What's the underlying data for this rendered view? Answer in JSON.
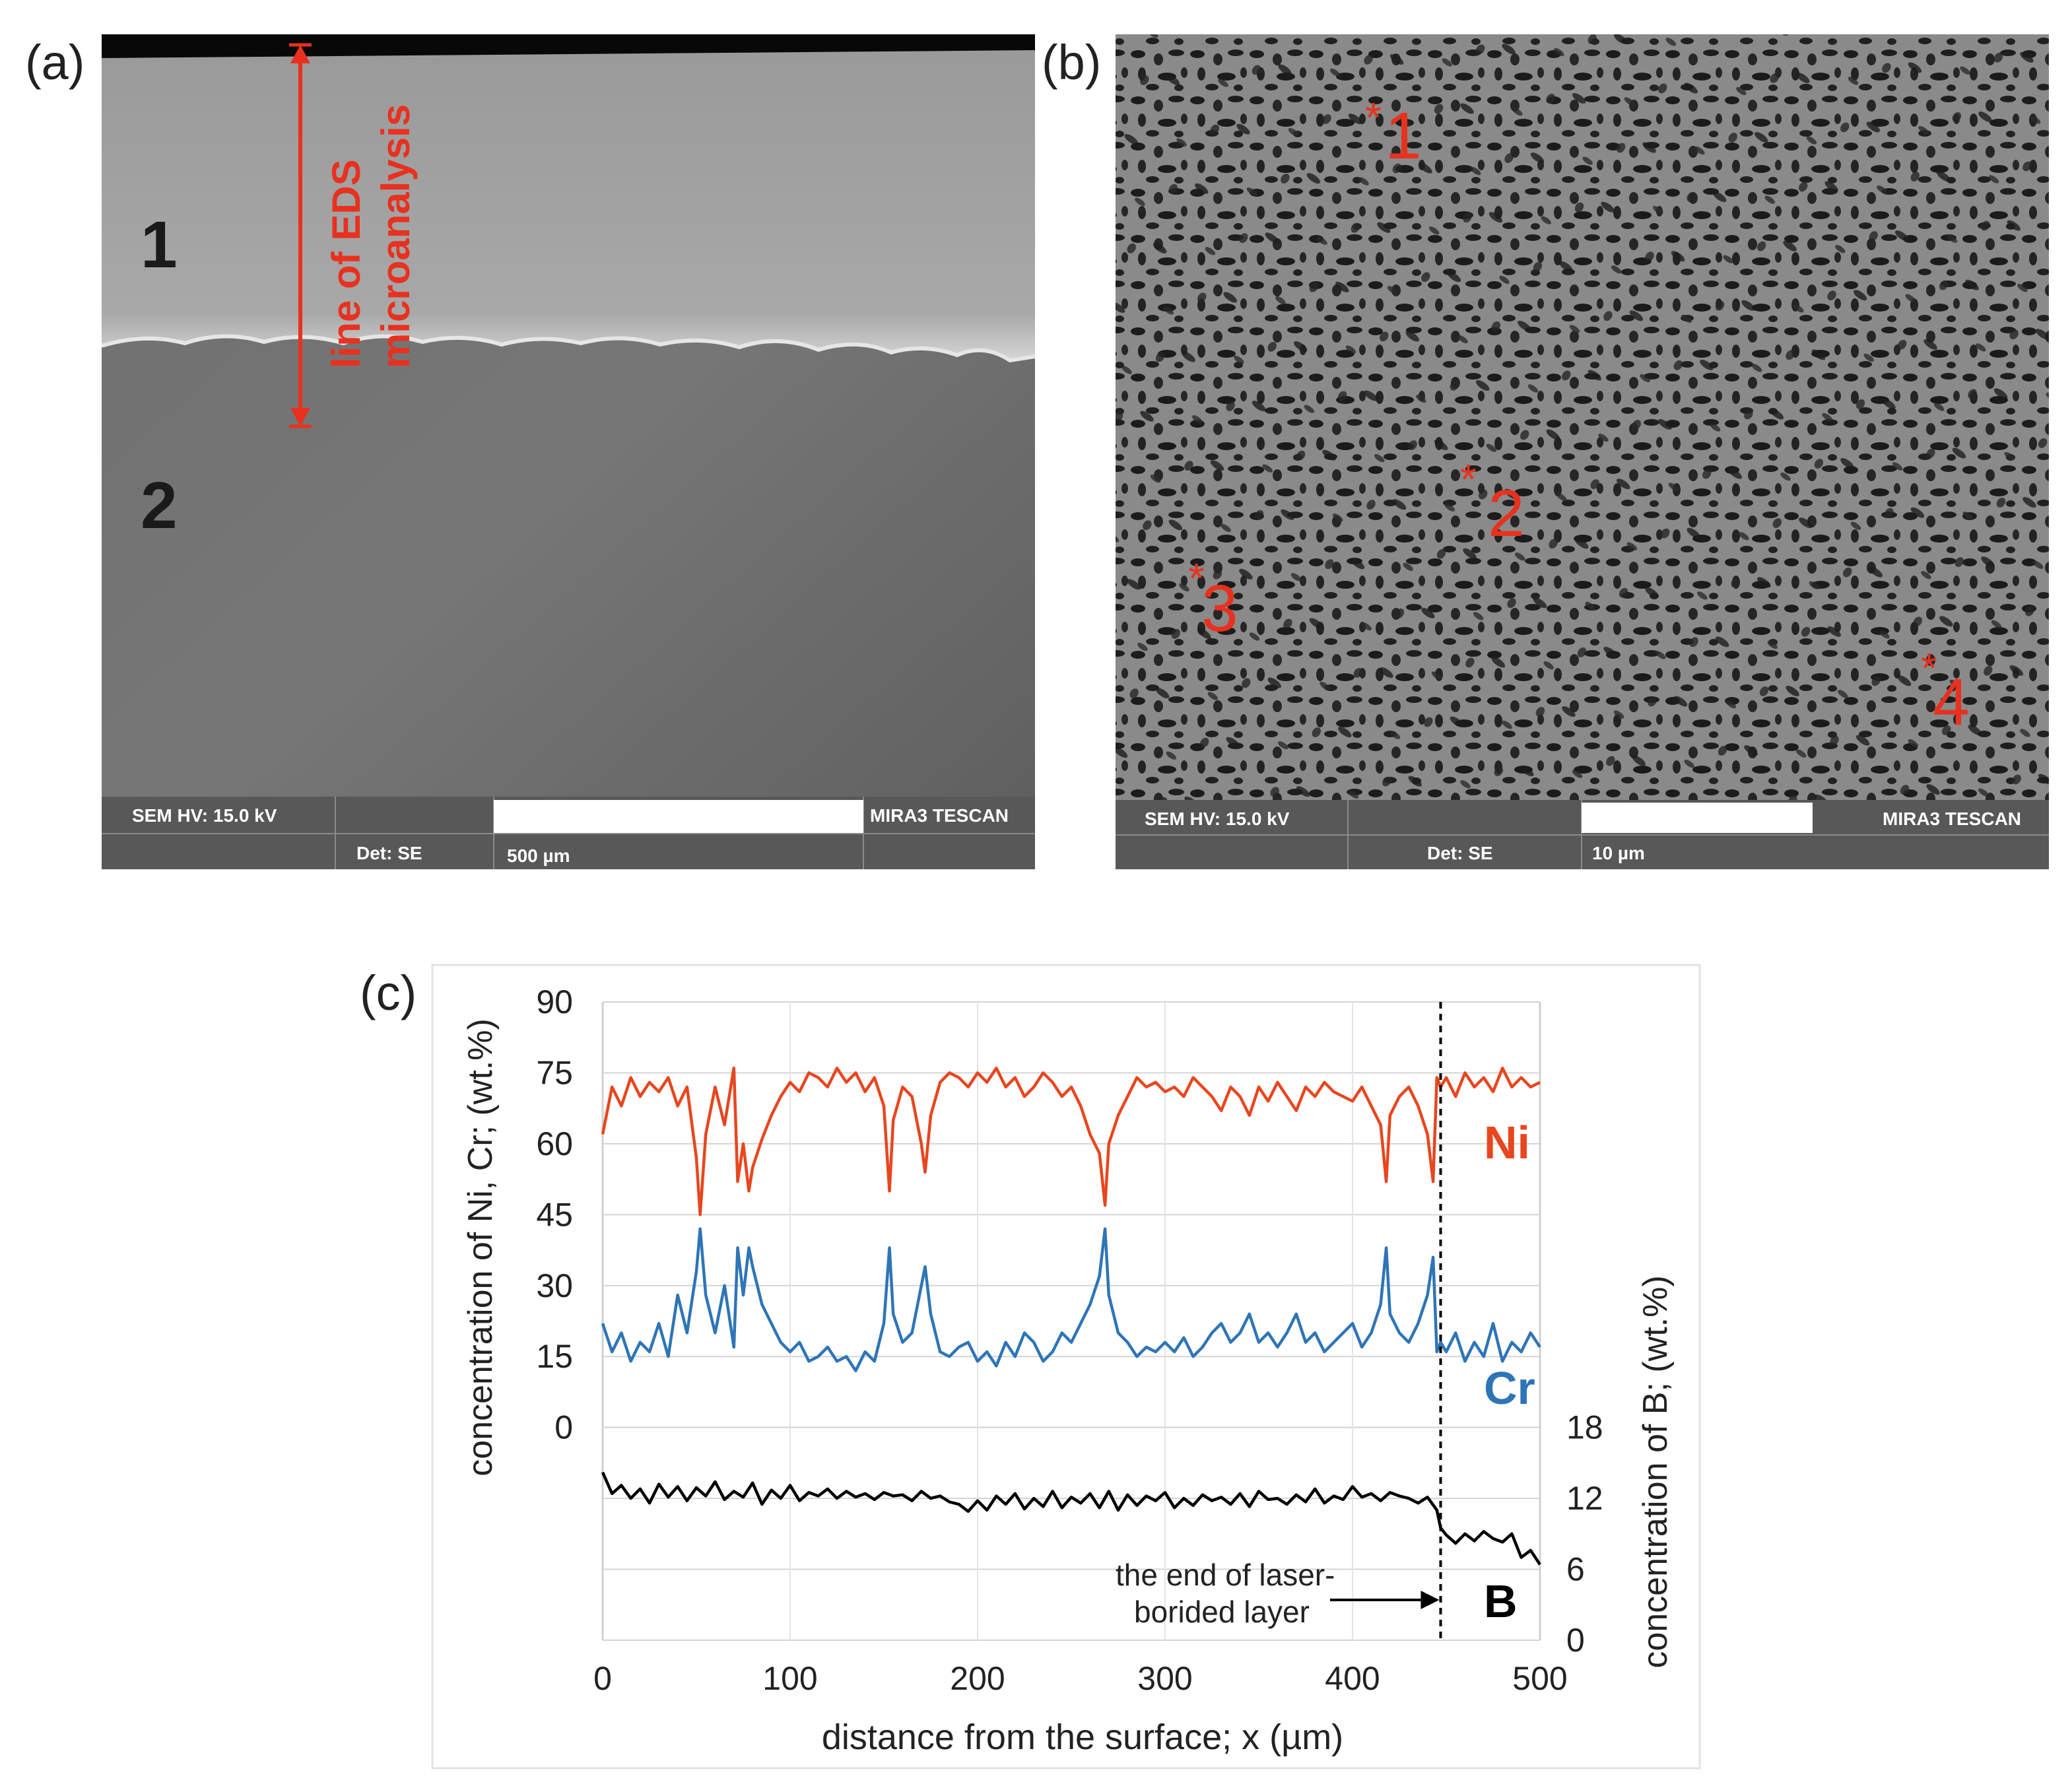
{
  "colors": {
    "ni": "#e8461e",
    "cr": "#2e75b6",
    "b": "#000000",
    "annotation_red": "#e8311e",
    "sem_bar": "#585858"
  },
  "panel_a": {
    "label": "(a)",
    "region1": "1",
    "region2": "2",
    "eds_line_label_1": "line of EDS",
    "eds_line_label_2": "microanalysis",
    "info_hv": "SEM HV: 15.0 kV",
    "info_det": "Det: SE",
    "info_scale": "500 µm",
    "info_brand": "MIRA3 TESCAN"
  },
  "panel_b": {
    "label": "(b)",
    "points": [
      {
        "star": "*",
        "num": "1"
      },
      {
        "star": "*",
        "num": "2"
      },
      {
        "star": "*",
        "num": "3"
      },
      {
        "star": "*",
        "num": "4"
      }
    ],
    "info_hv": "SEM HV: 15.0 kV",
    "info_det": "Det: SE",
    "info_scale": "10 µm",
    "info_brand": "MIRA3 TESCAN"
  },
  "chart_data": {
    "label": "(c)",
    "type": "line",
    "xlabel": "distance from the surface; x (µm)",
    "ylabel_left": "concentration of Ni, Cr; (wt.%)",
    "ylabel_right": "concentration of B; (wt.%)",
    "xlim": [
      0,
      500
    ],
    "ylim_left": [
      -45,
      90
    ],
    "ylim_right": [
      0,
      18
    ],
    "x_ticks": [
      "0",
      "100",
      "200",
      "300",
      "400",
      "500"
    ],
    "y_ticks_left": [
      "0",
      "15",
      "30",
      "45",
      "60",
      "75",
      "90"
    ],
    "y_ticks_right": [
      "0",
      "6",
      "12",
      "18"
    ],
    "grid": "horizontal",
    "layer_end_x": 447,
    "annotation_1": "the end of laser-",
    "annotation_2": "borided layer",
    "series": [
      {
        "name": "Ni",
        "axis": "left",
        "color": "#e8461e",
        "x": [
          0,
          5,
          10,
          15,
          20,
          25,
          30,
          35,
          40,
          45,
          50,
          52,
          55,
          60,
          65,
          70,
          72,
          75,
          78,
          80,
          85,
          90,
          95,
          100,
          105,
          110,
          115,
          120,
          125,
          130,
          135,
          140,
          145,
          150,
          153,
          155,
          160,
          165,
          170,
          172,
          175,
          180,
          185,
          190,
          195,
          200,
          205,
          210,
          215,
          220,
          225,
          230,
          235,
          240,
          245,
          250,
          255,
          260,
          265,
          268,
          270,
          275,
          280,
          285,
          290,
          295,
          300,
          305,
          310,
          315,
          320,
          325,
          330,
          335,
          340,
          345,
          350,
          355,
          360,
          365,
          370,
          375,
          380,
          385,
          390,
          395,
          400,
          405,
          410,
          415,
          418,
          420,
          425,
          430,
          435,
          440,
          443,
          445,
          447,
          450,
          455,
          460,
          465,
          470,
          475,
          480,
          485,
          490,
          495,
          500
        ],
        "y": [
          62,
          72,
          68,
          74,
          70,
          73,
          71,
          74,
          68,
          72,
          57,
          45,
          62,
          72,
          64,
          76,
          52,
          60,
          50,
          55,
          61,
          66,
          70,
          73,
          71,
          75,
          74,
          72,
          76,
          73,
          75,
          71,
          74,
          68,
          50,
          65,
          72,
          70,
          60,
          54,
          66,
          73,
          75,
          74,
          72,
          75,
          73,
          76,
          72,
          74,
          70,
          72,
          75,
          73,
          70,
          72,
          68,
          62,
          58,
          47,
          60,
          66,
          70,
          74,
          72,
          73,
          71,
          72,
          70,
          74,
          72,
          70,
          67,
          72,
          70,
          66,
          72,
          69,
          73,
          70,
          67,
          72,
          70,
          73,
          71,
          70,
          69,
          72,
          68,
          64,
          52,
          66,
          70,
          72,
          68,
          62,
          52,
          74,
          72,
          74,
          70,
          75,
          72,
          74,
          71,
          76,
          72,
          74,
          72,
          73
        ]
      },
      {
        "name": "Cr",
        "axis": "left",
        "color": "#2e75b6",
        "x": [
          0,
          5,
          10,
          15,
          20,
          25,
          30,
          35,
          40,
          45,
          50,
          52,
          55,
          60,
          65,
          70,
          72,
          75,
          78,
          80,
          85,
          90,
          95,
          100,
          105,
          110,
          115,
          120,
          125,
          130,
          135,
          140,
          145,
          150,
          153,
          155,
          160,
          165,
          170,
          172,
          175,
          180,
          185,
          190,
          195,
          200,
          205,
          210,
          215,
          220,
          225,
          230,
          235,
          240,
          245,
          250,
          255,
          260,
          265,
          268,
          270,
          275,
          280,
          285,
          290,
          295,
          300,
          305,
          310,
          315,
          320,
          325,
          330,
          335,
          340,
          345,
          350,
          355,
          360,
          365,
          370,
          375,
          380,
          385,
          390,
          395,
          400,
          405,
          410,
          415,
          418,
          420,
          425,
          430,
          435,
          440,
          443,
          445,
          447,
          450,
          455,
          460,
          465,
          470,
          475,
          480,
          485,
          490,
          495,
          500
        ],
        "y": [
          22,
          16,
          20,
          14,
          18,
          16,
          22,
          15,
          28,
          20,
          33,
          42,
          28,
          20,
          30,
          17,
          38,
          28,
          38,
          34,
          26,
          22,
          18,
          16,
          18,
          14,
          15,
          17,
          14,
          15,
          12,
          16,
          14,
          22,
          38,
          24,
          18,
          20,
          30,
          34,
          24,
          16,
          15,
          17,
          18,
          14,
          16,
          13,
          18,
          15,
          20,
          18,
          14,
          16,
          20,
          18,
          22,
          26,
          32,
          42,
          28,
          20,
          18,
          15,
          17,
          16,
          18,
          16,
          19,
          15,
          17,
          20,
          22,
          18,
          20,
          24,
          18,
          20,
          17,
          20,
          24,
          18,
          20,
          16,
          18,
          20,
          22,
          17,
          20,
          26,
          38,
          24,
          20,
          18,
          22,
          28,
          36,
          16,
          18,
          16,
          20,
          14,
          18,
          15,
          22,
          14,
          18,
          16,
          20,
          17
        ]
      },
      {
        "name": "B",
        "axis": "right",
        "color": "#000000",
        "x": [
          0,
          5,
          10,
          15,
          20,
          25,
          30,
          35,
          40,
          45,
          50,
          55,
          60,
          65,
          70,
          75,
          80,
          85,
          90,
          95,
          100,
          105,
          110,
          115,
          120,
          125,
          130,
          135,
          140,
          145,
          150,
          155,
          160,
          165,
          170,
          175,
          180,
          185,
          190,
          195,
          200,
          205,
          210,
          215,
          220,
          225,
          230,
          235,
          240,
          245,
          250,
          255,
          260,
          265,
          270,
          275,
          280,
          285,
          290,
          295,
          300,
          305,
          310,
          315,
          320,
          325,
          330,
          335,
          340,
          345,
          350,
          355,
          360,
          365,
          370,
          375,
          380,
          385,
          390,
          395,
          400,
          405,
          410,
          415,
          420,
          425,
          430,
          435,
          440,
          445,
          447,
          450,
          455,
          460,
          465,
          470,
          475,
          480,
          485,
          490,
          495,
          500
        ],
        "y": [
          14.2,
          12.4,
          13.1,
          12.0,
          12.8,
          11.6,
          13.2,
          12.1,
          13.0,
          11.8,
          12.9,
          12.2,
          13.4,
          11.9,
          12.6,
          12.1,
          13.3,
          11.5,
          12.7,
          12.0,
          13.1,
          11.8,
          12.5,
          12.2,
          12.8,
          12.0,
          12.6,
          12.1,
          12.4,
          11.9,
          12.5,
          12.2,
          12.3,
          11.8,
          12.6,
          12.0,
          12.2,
          11.7,
          11.5,
          10.9,
          11.8,
          11.0,
          12.2,
          11.5,
          12.4,
          11.1,
          12.0,
          11.3,
          12.6,
          11.2,
          12.1,
          11.6,
          12.4,
          11.2,
          12.6,
          11.0,
          12.3,
          11.4,
          12.2,
          11.8,
          12.5,
          11.2,
          12.0,
          11.4,
          12.3,
          11.8,
          12.1,
          11.5,
          12.4,
          11.3,
          12.6,
          11.9,
          12.0,
          11.5,
          12.3,
          11.7,
          12.8,
          11.6,
          12.2,
          11.9,
          13.0,
          12.1,
          12.4,
          11.8,
          12.5,
          12.2,
          12.0,
          11.6,
          12.1,
          11.0,
          9.5,
          8.9,
          8.2,
          9.0,
          8.4,
          9.2,
          8.6,
          8.3,
          9.0,
          7.0,
          7.6,
          6.4
        ]
      }
    ]
  }
}
